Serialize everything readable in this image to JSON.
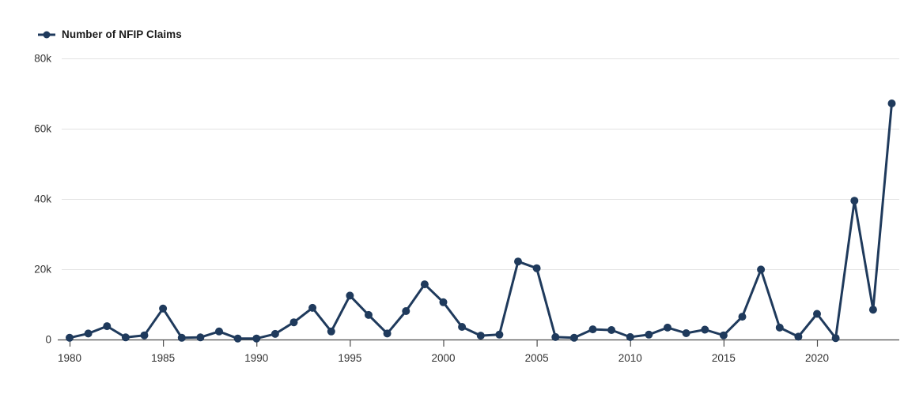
{
  "legend": {
    "label": "Number of NFIP Claims"
  },
  "colors": {
    "series": "#1f3a5c",
    "grid": "#e3e3e3",
    "axis": "#4d4d4d",
    "tick_label": "#333333",
    "legend_text": "#1a1a1a",
    "background": "#ffffff"
  },
  "chart_data": {
    "type": "line",
    "title": "",
    "xlabel": "",
    "ylabel": "",
    "series_name": "Number of NFIP Claims",
    "marker": "circle",
    "grid": "horizontal",
    "legend_position": "top-left",
    "xlim": [
      1980,
      2024
    ],
    "ylim": [
      0,
      80000
    ],
    "x": [
      1980,
      1981,
      1982,
      1983,
      1984,
      1985,
      1986,
      1987,
      1988,
      1989,
      1990,
      1991,
      1992,
      1993,
      1994,
      1995,
      1996,
      1997,
      1998,
      1999,
      2000,
      2001,
      2002,
      2003,
      2004,
      2005,
      2006,
      2007,
      2008,
      2009,
      2010,
      2011,
      2012,
      2013,
      2014,
      2015,
      2016,
      2017,
      2018,
      2019,
      2020,
      2021,
      2022,
      2023,
      2024
    ],
    "values": [
      500,
      1700,
      3800,
      600,
      1200,
      8800,
      500,
      600,
      2300,
      300,
      300,
      1600,
      4900,
      9000,
      2300,
      12500,
      7000,
      1700,
      8100,
      15700,
      10600,
      3600,
      1100,
      1400,
      22200,
      20300,
      700,
      500,
      2900,
      2700,
      700,
      1400,
      3400,
      1800,
      2800,
      1200,
      6500,
      19900,
      3400,
      800,
      7300,
      400,
      39500,
      8500,
      67200
    ],
    "x_ticks": [
      1980,
      1985,
      1990,
      1995,
      2000,
      2005,
      2010,
      2015,
      2020
    ],
    "x_tick_labels": [
      "1980",
      "1985",
      "1990",
      "1995",
      "2000",
      "2005",
      "2010",
      "2015",
      "2020"
    ],
    "y_ticks": [
      0,
      20000,
      40000,
      60000,
      80000
    ],
    "y_tick_labels": [
      "0",
      "20k",
      "40k",
      "60k",
      "80k"
    ]
  }
}
